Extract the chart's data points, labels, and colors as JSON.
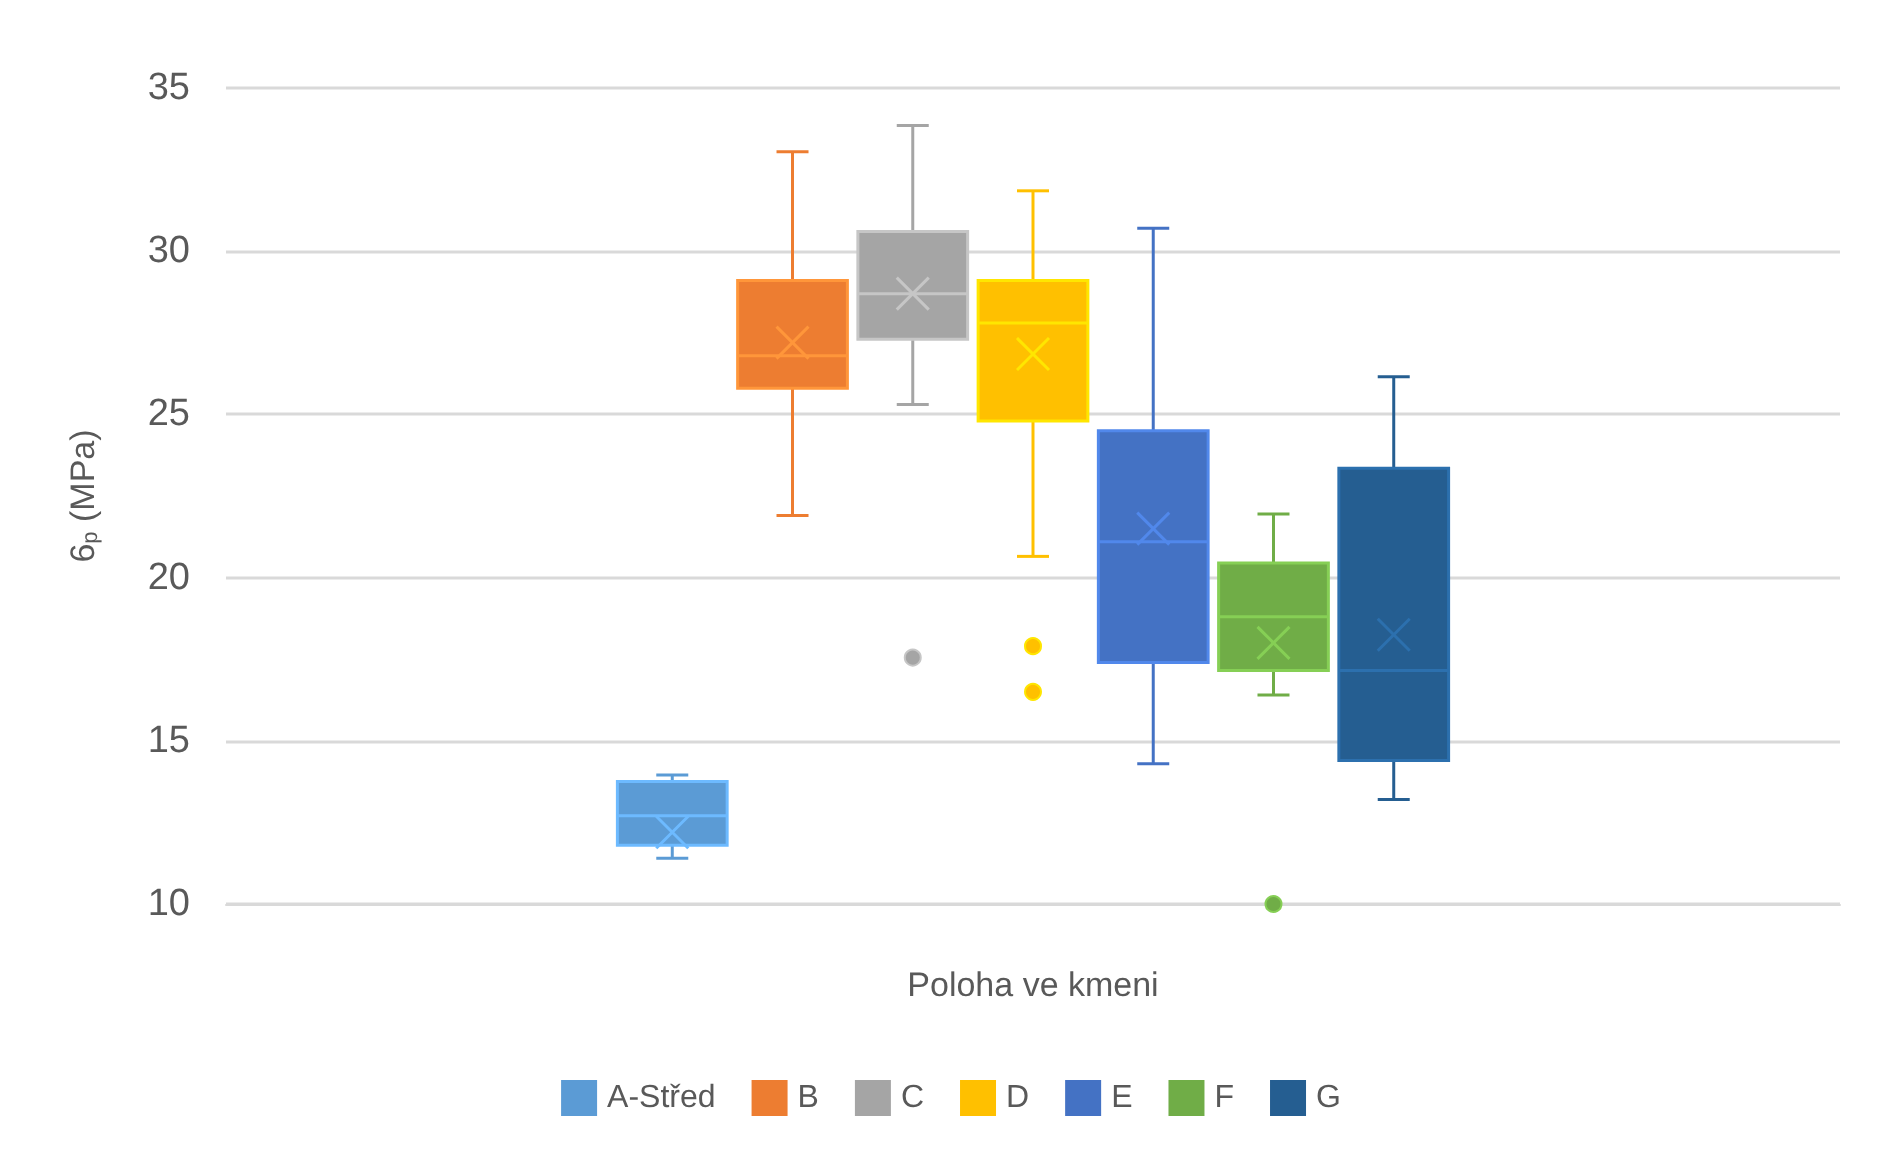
{
  "chart_data": {
    "type": "box",
    "xlabel": "Poloha ve kmeni",
    "ylabel": "6$_{p}$ (MPa)",
    "categories": [
      null
    ],
    "ylim": [
      10,
      35
    ],
    "yticks": [
      10,
      15,
      20,
      25,
      30,
      35
    ],
    "grid": "y",
    "legend": "bottom",
    "series": [
      {
        "name": "A-Střed",
        "color": "#5b9bd5",
        "boxes": [
          {
            "low": 11.4,
            "q1": 11.8,
            "median": 12.7,
            "q3": 13.75,
            "high": 13.95,
            "mean": 12.2
          }
        ]
      },
      {
        "name": "B",
        "color": "#ed7d31",
        "boxes": [
          {
            "low": 21.9,
            "q1": 25.8,
            "median": 26.8,
            "q3": 29.1,
            "high": 33.05,
            "mean": 27.2
          }
        ]
      },
      {
        "name": "C",
        "color": "#a5a5a5",
        "boxes": [
          {
            "low": 25.3,
            "q1": 27.3,
            "median": 28.7,
            "q3": 30.6,
            "high": 33.85,
            "mean": 28.7,
            "outliers": [
              17.55
            ]
          }
        ]
      },
      {
        "name": "D",
        "color": "#ffc000",
        "boxes": [
          {
            "low": 20.65,
            "q1": 24.8,
            "median": 27.8,
            "q3": 29.1,
            "high": 31.85,
            "mean": 26.85,
            "outliers": [
              17.9,
              16.5
            ]
          }
        ]
      },
      {
        "name": "E",
        "color": "#4472c4",
        "boxes": [
          {
            "low": 14.3,
            "q1": 17.4,
            "median": 21.1,
            "q3": 24.5,
            "high": 30.7,
            "mean": 21.5
          }
        ]
      },
      {
        "name": "F",
        "color": "#70ad47",
        "boxes": [
          {
            "low": 16.4,
            "q1": 17.15,
            "median": 18.8,
            "q3": 20.45,
            "high": 21.95,
            "mean": 18.0,
            "outliers": [
              10.0
            ]
          }
        ]
      },
      {
        "name": "G",
        "color": "#255e91",
        "boxes": [
          {
            "low": 13.2,
            "q1": 14.4,
            "median": 17.15,
            "q3": 23.35,
            "high": 26.15,
            "mean": 18.25
          }
        ]
      }
    ]
  }
}
